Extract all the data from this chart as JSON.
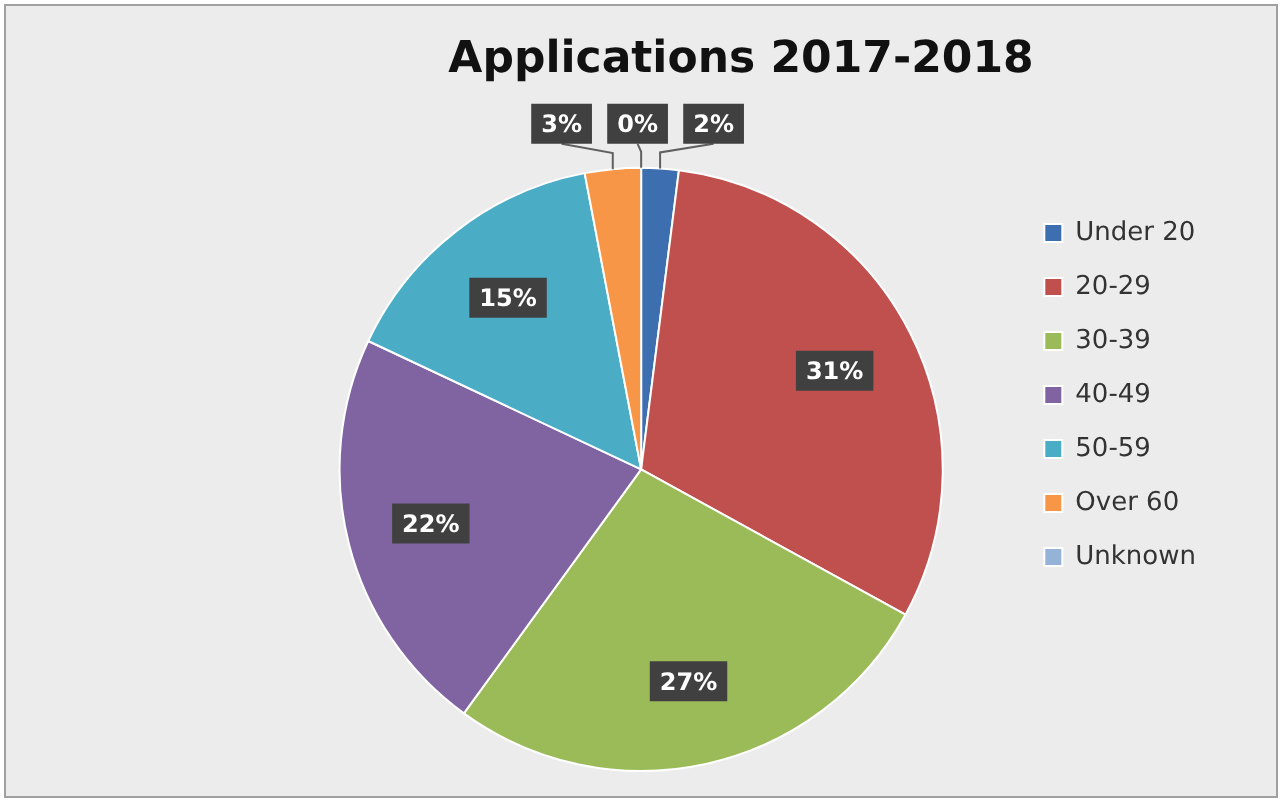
{
  "chart_data": {
    "type": "pie",
    "title": "Applications 2017-2018",
    "categories": [
      "Under 20",
      "20-29",
      "30-39",
      "40-49",
      "50-59",
      "Over 60",
      "Unknown"
    ],
    "values": [
      2,
      31,
      27,
      22,
      15,
      3,
      0
    ],
    "colors": [
      "#3d6fb0",
      "#c0504d",
      "#9bbb59",
      "#8064a2",
      "#4bacc6",
      "#f79646",
      "#95b3d7"
    ],
    "value_labels": [
      "2%",
      "31%",
      "27%",
      "22%",
      "15%",
      "3%",
      "0%"
    ],
    "legend": "right"
  }
}
